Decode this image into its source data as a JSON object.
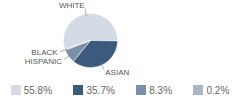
{
  "chart_data": {
    "type": "pie",
    "categories": [
      "WHITE",
      "ASIAN",
      "HISPANIC",
      "BLACK"
    ],
    "values": [
      55.8,
      35.7,
      8.3,
      0.2
    ],
    "value_labels": [
      "55.8%",
      "35.7%",
      "8.3%",
      "0.2%"
    ],
    "colors": [
      "#d5dbe5",
      "#3b5a7e",
      "#7b8fa8",
      "#a9b7c7"
    ],
    "legend": "bottom"
  }
}
